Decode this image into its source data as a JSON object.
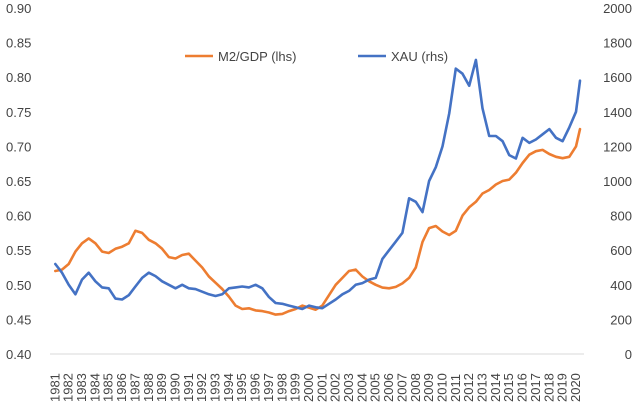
{
  "chart_data": {
    "type": "line",
    "title": "",
    "grid": false,
    "legend_position": "top-center",
    "x": [
      1981.0,
      1981.5,
      1982.0,
      1982.5,
      1983.0,
      1983.5,
      1984.0,
      1984.5,
      1985.0,
      1985.5,
      1986.0,
      1986.5,
      1987.0,
      1987.5,
      1988.0,
      1988.5,
      1989.0,
      1989.5,
      1990.0,
      1990.5,
      1991.0,
      1991.5,
      1992.0,
      1992.5,
      1993.0,
      1993.5,
      1994.0,
      1994.5,
      1995.0,
      1995.5,
      1996.0,
      1996.5,
      1997.0,
      1997.5,
      1998.0,
      1998.5,
      1999.0,
      1999.5,
      2000.0,
      2000.5,
      2001.0,
      2001.5,
      2002.0,
      2002.5,
      2003.0,
      2003.5,
      2004.0,
      2004.5,
      2005.0,
      2005.5,
      2006.0,
      2006.5,
      2007.0,
      2007.5,
      2008.0,
      2008.5,
      2009.0,
      2009.5,
      2010.0,
      2010.5,
      2011.0,
      2011.5,
      2012.0,
      2012.5,
      2013.0,
      2013.5,
      2014.0,
      2014.5,
      2015.0,
      2015.5,
      2016.0,
      2016.5,
      2017.0,
      2017.5,
      2018.0,
      2018.5,
      2019.0,
      2019.5,
      2020.0,
      2020.3
    ],
    "x_ticks": [
      "1981",
      "1982",
      "1983",
      "1984",
      "1985",
      "1986",
      "1987",
      "1988",
      "1989",
      "1990",
      "1991",
      "1992",
      "1993",
      "1994",
      "1995",
      "1996",
      "1997",
      "1998",
      "1999",
      "2000",
      "2001",
      "2002",
      "2003",
      "2004",
      "2005",
      "2006",
      "2007",
      "2008",
      "2009",
      "2010",
      "2011",
      "2012",
      "2013",
      "2014",
      "2015",
      "2016",
      "2017",
      "2018",
      "2019",
      "2020"
    ],
    "xlim": [
      1980.6,
      2020.6
    ],
    "y_left": {
      "ylim": [
        0.4,
        0.9
      ],
      "ticks": [
        "0.40",
        "0.45",
        "0.50",
        "0.55",
        "0.60",
        "0.65",
        "0.70",
        "0.75",
        "0.80",
        "0.85",
        "0.90"
      ]
    },
    "y_right": {
      "ylim": [
        0,
        2000
      ],
      "ticks": [
        "0",
        "200",
        "400",
        "600",
        "800",
        "1000",
        "1200",
        "1400",
        "1600",
        "1800",
        "2000"
      ]
    },
    "series": [
      {
        "name": "M2/GDP (lhs)",
        "axis": "left",
        "color": "#ED7D31",
        "values": [
          0.52,
          0.522,
          0.53,
          0.548,
          0.56,
          0.567,
          0.56,
          0.548,
          0.546,
          0.552,
          0.555,
          0.56,
          0.578,
          0.575,
          0.565,
          0.56,
          0.552,
          0.54,
          0.538,
          0.543,
          0.545,
          0.535,
          0.525,
          0.512,
          0.503,
          0.494,
          0.483,
          0.47,
          0.465,
          0.466,
          0.463,
          0.462,
          0.46,
          0.457,
          0.458,
          0.462,
          0.465,
          0.47,
          0.467,
          0.464,
          0.47,
          0.485,
          0.5,
          0.51,
          0.52,
          0.522,
          0.512,
          0.505,
          0.5,
          0.496,
          0.495,
          0.497,
          0.502,
          0.51,
          0.525,
          0.562,
          0.582,
          0.585,
          0.577,
          0.572,
          0.578,
          0.6,
          0.612,
          0.62,
          0.632,
          0.637,
          0.645,
          0.65,
          0.652,
          0.662,
          0.676,
          0.688,
          0.693,
          0.695,
          0.689,
          0.685,
          0.683,
          0.685,
          0.7,
          0.725
        ]
      },
      {
        "name": "XAU (rhs)",
        "axis": "right",
        "color": "#4472C4",
        "values": [
          520,
          470,
          400,
          345,
          430,
          470,
          420,
          385,
          380,
          320,
          315,
          340,
          390,
          440,
          470,
          450,
          420,
          400,
          380,
          400,
          380,
          375,
          360,
          345,
          335,
          345,
          380,
          385,
          390,
          385,
          400,
          380,
          330,
          295,
          290,
          280,
          270,
          260,
          280,
          270,
          265,
          290,
          315,
          345,
          365,
          400,
          410,
          430,
          440,
          550,
          600,
          650,
          700,
          900,
          880,
          820,
          1000,
          1080,
          1200,
          1390,
          1650,
          1620,
          1550,
          1700,
          1420,
          1260,
          1260,
          1230,
          1150,
          1130,
          1250,
          1220,
          1240,
          1270,
          1300,
          1250,
          1230,
          1310,
          1400,
          1580
        ]
      }
    ]
  }
}
